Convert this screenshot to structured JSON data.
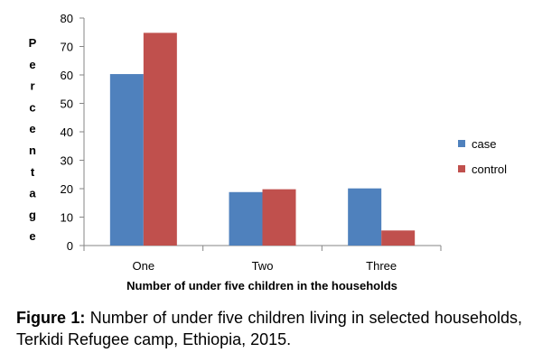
{
  "chart_data": {
    "type": "bar",
    "categories": [
      "One",
      "Two",
      "Three"
    ],
    "series": [
      {
        "name": "case",
        "values": [
          60.3,
          18.8,
          20.1
        ],
        "color": "#4F81BD"
      },
      {
        "name": "control",
        "values": [
          74.8,
          19.8,
          5.3
        ],
        "color": "#C0504D"
      }
    ],
    "xlabel": "Number of under five children in the households",
    "ylabel": "Percentage",
    "ylim": [
      0,
      80
    ],
    "yticks": [
      0,
      10,
      20,
      30,
      40,
      50,
      60,
      70,
      80
    ],
    "grid": false,
    "legend_position": "right"
  },
  "caption": {
    "label": "Figure 1:",
    "text": "Number of under five children living in selected households, Terkidi Refugee camp, Ethiopia, 2015."
  }
}
